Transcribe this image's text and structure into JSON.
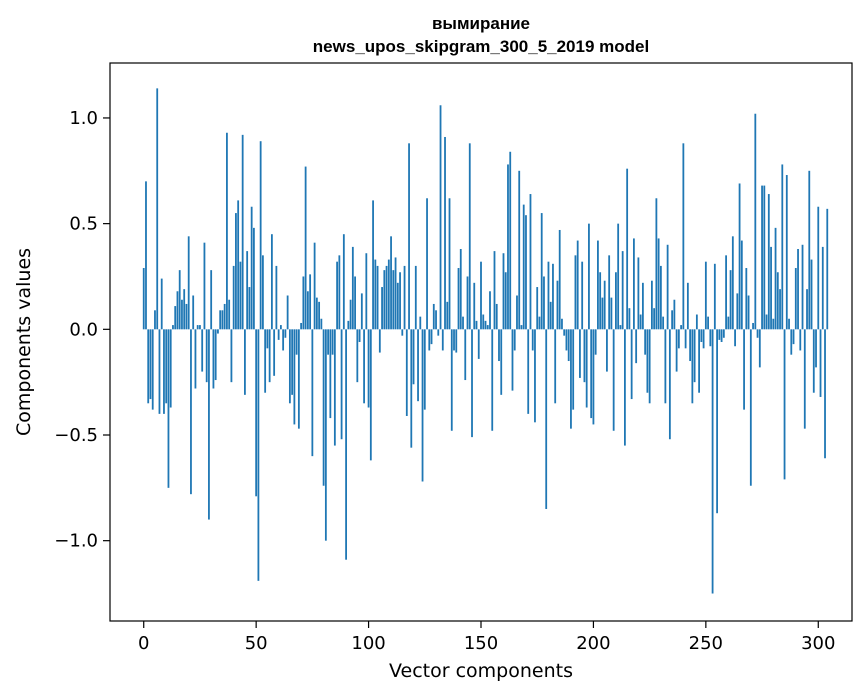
{
  "chart_data": {
    "type": "bar",
    "title": "вымирание",
    "subtitle": "news_upos_skipgram_300_5_2019 model",
    "xlabel": "Vector components",
    "ylabel": "Components values",
    "xlim": [
      -15,
      315
    ],
    "ylim": [
      -1.38,
      1.26
    ],
    "x_ticks": [
      0,
      50,
      100,
      150,
      200,
      250,
      300
    ],
    "y_ticks": [
      -1.0,
      -0.5,
      0.0,
      0.5,
      1.0
    ],
    "x_tick_labels": [
      "0",
      "50",
      "100",
      "150",
      "200",
      "250",
      "300"
    ],
    "y_tick_labels": [
      "−1.0",
      "−0.5",
      "0.0",
      "0.5",
      "1.0"
    ],
    "bar_color": "#1f77b4",
    "grid": false,
    "legend": "none",
    "values": [
      0.29,
      0.7,
      -0.35,
      -0.33,
      -0.38,
      0.09,
      1.14,
      -0.4,
      0.24,
      -0.4,
      -0.35,
      -0.75,
      -0.37,
      0.02,
      0.11,
      0.18,
      0.28,
      0.14,
      0.19,
      0.12,
      0.44,
      -0.78,
      0.16,
      -0.28,
      0.02,
      0.02,
      -0.2,
      0.41,
      -0.25,
      -0.9,
      0.28,
      -0.28,
      -0.24,
      -0.02,
      0.09,
      0.09,
      0.12,
      0.93,
      0.14,
      -0.25,
      0.3,
      0.55,
      0.61,
      0.32,
      0.92,
      -0.31,
      0.37,
      0.2,
      0.58,
      0.48,
      -0.79,
      -1.19,
      0.89,
      0.35,
      -0.3,
      -0.09,
      -0.25,
      0.45,
      -0.22,
      0.3,
      -0.05,
      0.02,
      -0.1,
      -0.04,
      0.16,
      -0.35,
      -0.31,
      -0.45,
      -0.12,
      -0.47,
      0.03,
      0.25,
      0.77,
      0.18,
      0.26,
      -0.6,
      0.41,
      0.15,
      0.13,
      0.05,
      -0.74,
      -1.0,
      -0.12,
      -0.42,
      -0.12,
      -0.55,
      0.32,
      0.35,
      -0.52,
      0.45,
      -1.09,
      0.04,
      0.14,
      0.39,
      0.25,
      -0.25,
      -0.06,
      0.17,
      -0.35,
      0.36,
      -0.37,
      -0.62,
      0.61,
      0.33,
      0.3,
      -0.11,
      0.2,
      0.28,
      0.3,
      0.33,
      0.44,
      0.28,
      0.34,
      0.22,
      0.27,
      -0.03,
      0.3,
      -0.41,
      0.88,
      -0.56,
      -0.26,
      0.3,
      -0.34,
      0.06,
      -0.72,
      -0.38,
      0.62,
      -0.1,
      -0.07,
      0.12,
      0.09,
      -0.03,
      1.06,
      -0.1,
      0.91,
      0.13,
      0.62,
      -0.48,
      -0.1,
      -0.11,
      0.29,
      0.38,
      0.06,
      -0.24,
      0.25,
      0.88,
      -0.51,
      0.22,
      0.04,
      -0.14,
      0.32,
      0.07,
      0.04,
      0.02,
      0.18,
      -0.48,
      0.37,
      0.12,
      -0.15,
      -0.31,
      0.36,
      0.27,
      0.78,
      0.84,
      -0.29,
      -0.1,
      0.16,
      0.75,
      0.02,
      0.59,
      0.54,
      -0.4,
      0.64,
      -0.1,
      -0.44,
      0.2,
      0.06,
      0.55,
      0.25,
      -0.85,
      0.32,
      0.13,
      0.31,
      -0.35,
      0.23,
      0.47,
      0.05,
      -0.03,
      -0.1,
      -0.15,
      -0.47,
      -0.38,
      0.35,
      0.42,
      -0.23,
      0.32,
      -0.25,
      -0.37,
      0.5,
      -0.42,
      -0.45,
      -0.12,
      0.42,
      0.27,
      0.15,
      0.23,
      -0.2,
      0.35,
      0.15,
      -0.48,
      0.27,
      0.5,
      0.02,
      0.37,
      -0.55,
      0.76,
      0.1,
      -0.33,
      0.43,
      -0.16,
      0.34,
      0.07,
      0.22,
      -0.12,
      -0.3,
      -0.35,
      0.23,
      0.1,
      0.62,
      0.43,
      0.3,
      0.06,
      -0.35,
      0.4,
      -0.52,
      0.09,
      0.14,
      -0.2,
      -0.09,
      0.02,
      0.88,
      -0.09,
      0.22,
      -0.15,
      -0.35,
      -0.25,
      0.07,
      -0.3,
      -0.06,
      -0.09,
      0.32,
      0.06,
      -0.08,
      -1.25,
      0.31,
      -0.87,
      -0.05,
      -0.06,
      -0.04,
      0.35,
      0.06,
      0.28,
      0.44,
      -0.08,
      0.17,
      0.69,
      0.42,
      -0.38,
      0.29,
      0.16,
      -0.74,
      0.03,
      1.02,
      -0.04,
      -0.18,
      0.68,
      0.68,
      0.07,
      0.64,
      0.39,
      0.05,
      0.48,
      0.27,
      0.19,
      0.78,
      -0.71,
      0.73,
      0.05,
      -0.12,
      -0.07,
      0.29,
      0.38,
      -0.1,
      0.4,
      -0.47,
      0.19,
      0.75,
      0.33,
      -0.3,
      -0.18,
      0.58,
      -0.32,
      0.39,
      -0.61,
      0.57
    ]
  }
}
